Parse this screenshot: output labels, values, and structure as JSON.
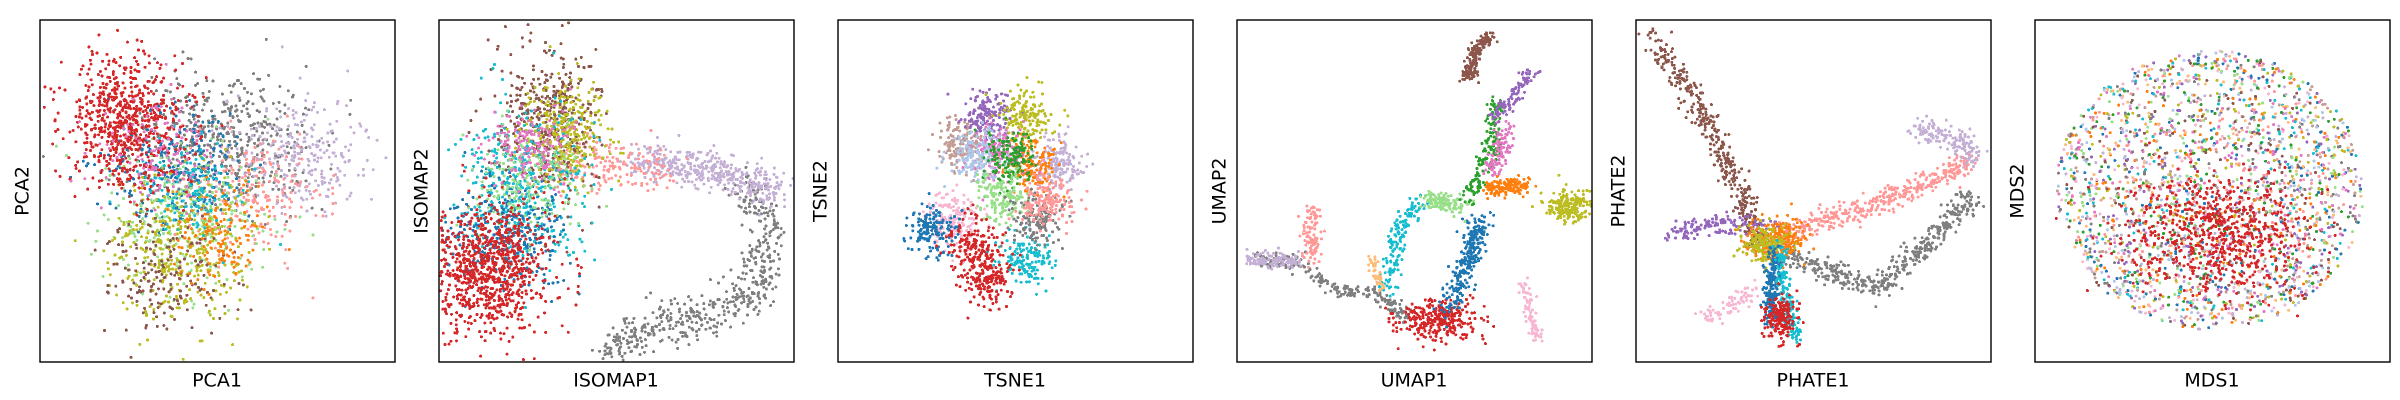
{
  "chart_data": [
    {
      "type": "scatter",
      "method": "PCA",
      "xlabel": "PCA1",
      "ylabel": "PCA2",
      "ticks": false,
      "grid": false,
      "legend": "none"
    },
    {
      "type": "scatter",
      "method": "ISOMAP",
      "xlabel": "ISOMAP1",
      "ylabel": "ISOMAP2",
      "ticks": false,
      "grid": false,
      "legend": "none"
    },
    {
      "type": "scatter",
      "method": "TSNE",
      "xlabel": "TSNE1",
      "ylabel": "TSNE2",
      "ticks": false,
      "grid": false,
      "legend": "none"
    },
    {
      "type": "scatter",
      "method": "UMAP",
      "xlabel": "UMAP1",
      "ylabel": "UMAP2",
      "ticks": false,
      "grid": false,
      "legend": "none"
    },
    {
      "type": "scatter",
      "method": "PHATE",
      "xlabel": "PHATE1",
      "ylabel": "PHATE2",
      "ticks": false,
      "grid": false,
      "legend": "none"
    },
    {
      "type": "scatter",
      "method": "MDS",
      "xlabel": "MDS1",
      "ylabel": "MDS2",
      "ticks": false,
      "grid": false,
      "legend": "none"
    }
  ],
  "palette": {
    "c0": "#1f77b4",
    "c1": "#ff7f0e",
    "c2": "#2ca02c",
    "c3": "#d62728",
    "c4": "#9467bd",
    "c5": "#8c564b",
    "c6": "#e377c2",
    "c7": "#7f7f7f",
    "c8": "#bcbd22",
    "c9": "#17becf",
    "c10": "#aec7e8",
    "c11": "#ffbb78",
    "c12": "#98df8a",
    "c13": "#ff9896",
    "c14": "#c5b0d5",
    "c15": "#c49c94",
    "c16": "#f7b6d2"
  }
}
